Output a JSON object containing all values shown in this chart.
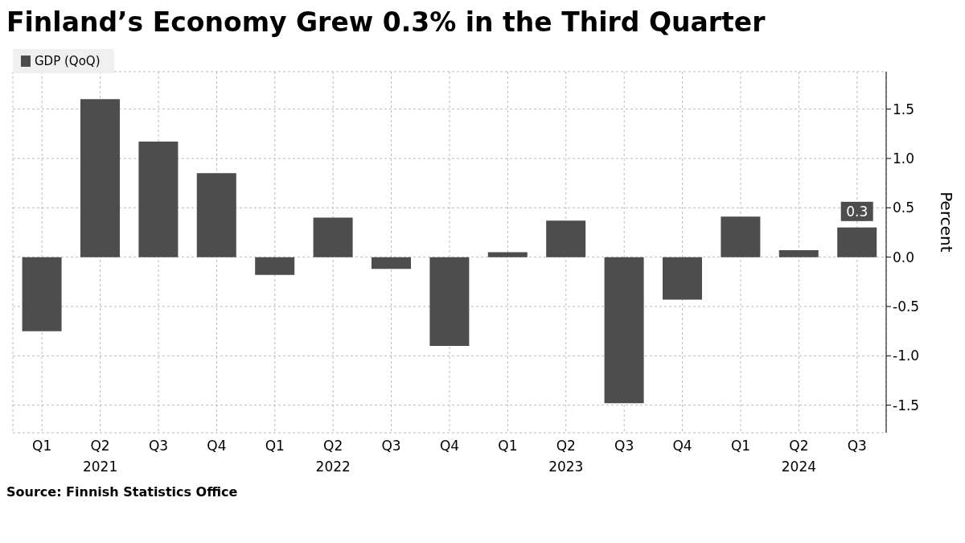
{
  "chart_data": {
    "type": "bar",
    "title": "Finland’s Economy Grew 0.3% in the Third Quarter",
    "categories": [
      "Q1",
      "Q2\n2021",
      "Q3",
      "Q4",
      "Q1",
      "Q2\n2022",
      "Q3",
      "Q4",
      "Q1",
      "Q2\n2023",
      "Q3",
      "Q4",
      "Q1",
      "Q2\n2024",
      "Q3"
    ],
    "series": [
      {
        "name": "GDP (QoQ)",
        "color": "#4d4d4d",
        "values": [
          -0.75,
          1.6,
          1.17,
          0.85,
          -0.18,
          0.4,
          -0.12,
          -0.9,
          0.05,
          0.37,
          -1.48,
          -0.43,
          0.41,
          0.07,
          0.3
        ],
        "value_labels": [
          null,
          null,
          null,
          null,
          null,
          null,
          null,
          null,
          null,
          null,
          null,
          null,
          null,
          null,
          "0.3"
        ]
      }
    ],
    "ylabel": "Percent",
    "ylim": [
      -1.78,
      1.88
    ],
    "yticks": [
      {
        "value": -1.5,
        "label": "-1.5"
      },
      {
        "value": -1,
        "label": "-1.0"
      },
      {
        "value": -0.5,
        "label": "-0.5"
      },
      {
        "value": 0,
        "label": "0.0"
      },
      {
        "value": 0.5,
        "label": "0.5"
      },
      {
        "value": 1,
        "label": "1.0"
      },
      {
        "value": 1.5,
        "label": "1.5"
      }
    ],
    "grid": true,
    "legend": "top left",
    "annotations": [
      "Source: Finnish Statistics Office"
    ]
  }
}
